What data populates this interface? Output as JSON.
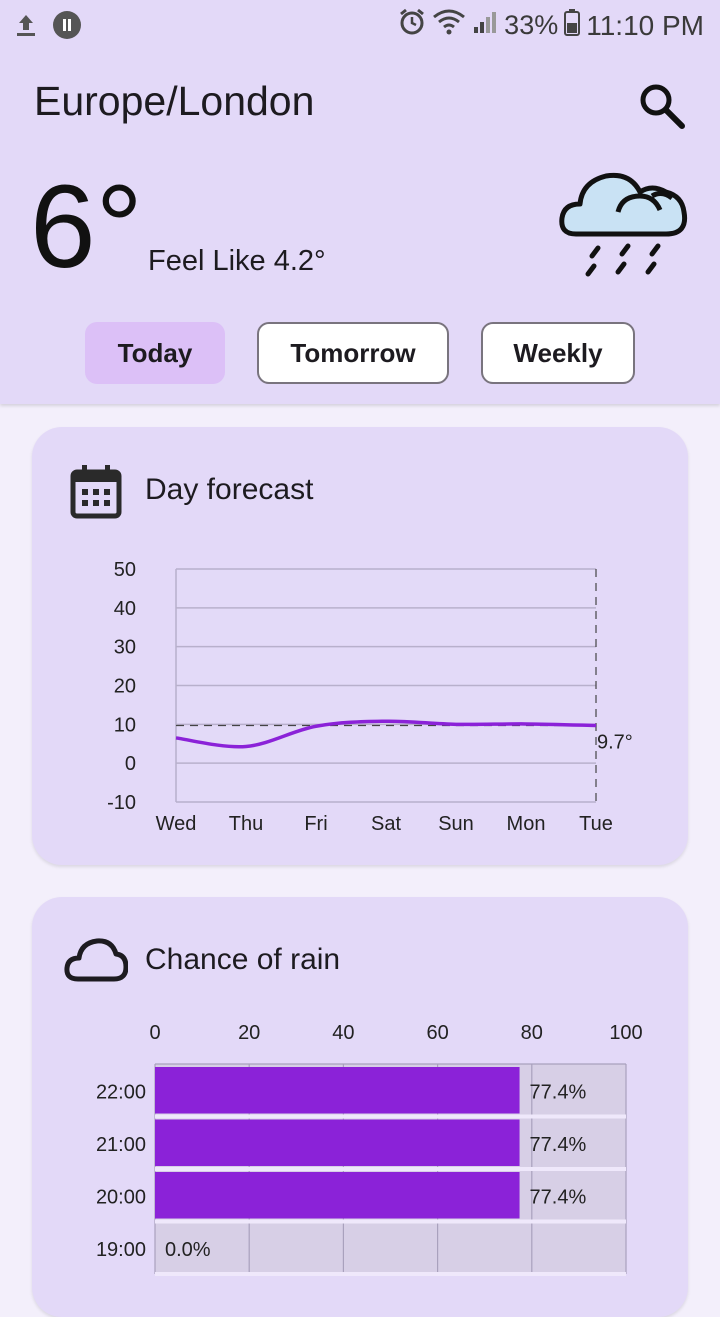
{
  "status_bar": {
    "battery": "33%",
    "time": "11:10 PM"
  },
  "header": {
    "city": "Europe/London",
    "temperature": "6°",
    "feels_like": "Feel Like 4.2°",
    "weather_icon": "cloud-rain-icon",
    "search_icon": "search-icon"
  },
  "tabs": [
    {
      "label": "Today",
      "active": true
    },
    {
      "label": "Tomorrow",
      "active": false
    },
    {
      "label": "Weekly",
      "active": false
    }
  ],
  "day_forecast": {
    "title": "Day forecast",
    "icon": "calendar-icon"
  },
  "chance_of_rain": {
    "title": "Chance of rain",
    "icon": "cloud-icon"
  },
  "colors": {
    "accent": "#8b22d8",
    "header_bg": "#e3d9f8",
    "page_bg": "#f3effb",
    "active_tab": "#dcc0f7"
  },
  "chart_data": [
    {
      "type": "line",
      "title": "",
      "x": [
        "Wed",
        "Thu",
        "Fri",
        "Sat",
        "Sun",
        "Mon",
        "Tue"
      ],
      "series": [
        {
          "values": [
            6.5,
            4.3,
            9.5,
            10.8,
            10.0,
            10.1,
            9.7
          ]
        }
      ],
      "yticks": [
        50,
        40,
        30,
        20,
        10,
        0,
        -10
      ],
      "ylim": [
        -10,
        50
      ],
      "reference_line": 9.7,
      "end_label": "9.7°",
      "grid": true
    },
    {
      "type": "bar",
      "orientation": "horizontal",
      "title": "",
      "categories": [
        "22:00",
        "21:00",
        "20:00",
        "19:00"
      ],
      "values": [
        77.4,
        77.4,
        77.4,
        0.0
      ],
      "value_labels": [
        "77.4%",
        "77.4%",
        "77.4%",
        "0.0%"
      ],
      "xticks": [
        0,
        20,
        40,
        60,
        80,
        100
      ],
      "xlim": [
        0,
        100
      ],
      "grid": true
    }
  ]
}
